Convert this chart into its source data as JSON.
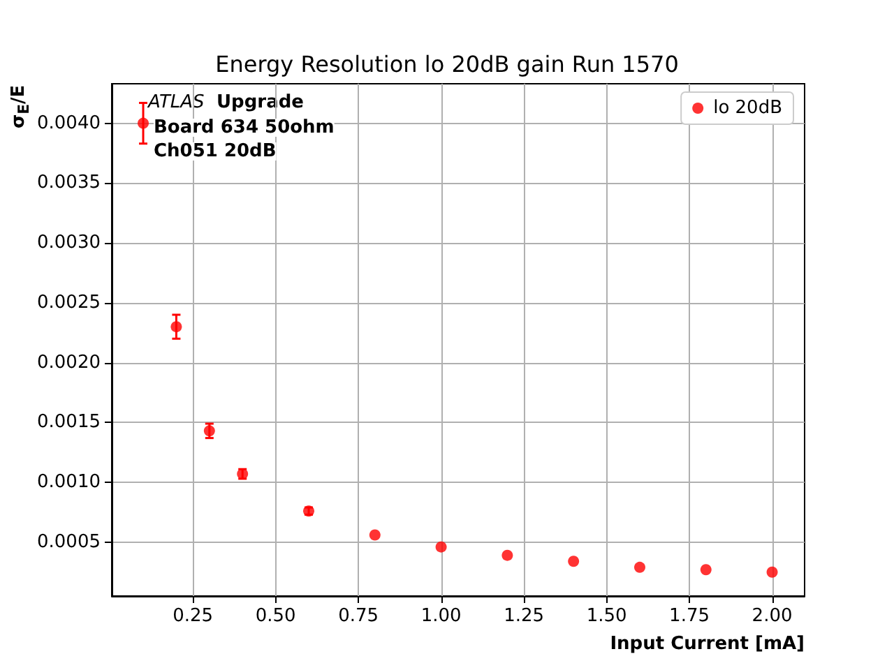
{
  "chart_data": {
    "type": "scatter",
    "title": "Energy Resolution lo 20dB gain Run 1570",
    "xlabel": "Input Current [mA]",
    "ylabel": "σ$_{E}$/E",
    "annotations": [
      "ATLAS",
      "Upgrade",
      "Board 634 50ohm",
      "Ch051 20dB"
    ],
    "x": [
      0.1,
      0.2,
      0.3,
      0.4,
      0.6,
      0.8,
      1.0,
      1.2,
      1.4,
      1.6,
      1.8,
      2.0
    ],
    "series": [
      {
        "name": "lo 20dB",
        "color": "#ff0000",
        "values": [
          0.004,
          0.0023,
          0.00143,
          0.00107,
          0.00076,
          0.00056,
          0.00046,
          0.00039,
          0.00034,
          0.00029,
          0.00027,
          0.00025
        ],
        "errors": [
          0.00017,
          0.0001,
          6e-05,
          4e-05,
          3e-05,
          null,
          null,
          null,
          null,
          null,
          null,
          null
        ]
      }
    ],
    "xlim": [
      0.005,
      2.098
    ],
    "ylim": [
      5e-05,
      0.00433
    ],
    "xticks": [
      {
        "value": 0.25,
        "label": "0.25"
      },
      {
        "value": 0.5,
        "label": "0.50"
      },
      {
        "value": 0.75,
        "label": "0.75"
      },
      {
        "value": 1.0,
        "label": "1.00"
      },
      {
        "value": 1.25,
        "label": "1.25"
      },
      {
        "value": 1.5,
        "label": "1.50"
      },
      {
        "value": 1.75,
        "label": "1.75"
      },
      {
        "value": 2.0,
        "label": "2.00"
      }
    ],
    "yticks": [
      {
        "value": 0.0005,
        "label": "0.0005"
      },
      {
        "value": 0.001,
        "label": "0.0010"
      },
      {
        "value": 0.0015,
        "label": "0.0015"
      },
      {
        "value": 0.002,
        "label": "0.0020"
      },
      {
        "value": 0.0025,
        "label": "0.0025"
      },
      {
        "value": 0.003,
        "label": "0.0030"
      },
      {
        "value": 0.0035,
        "label": "0.0035"
      },
      {
        "value": 0.004,
        "label": "0.0040"
      }
    ],
    "grid": true,
    "legend": "top right",
    "marker": "circle"
  }
}
